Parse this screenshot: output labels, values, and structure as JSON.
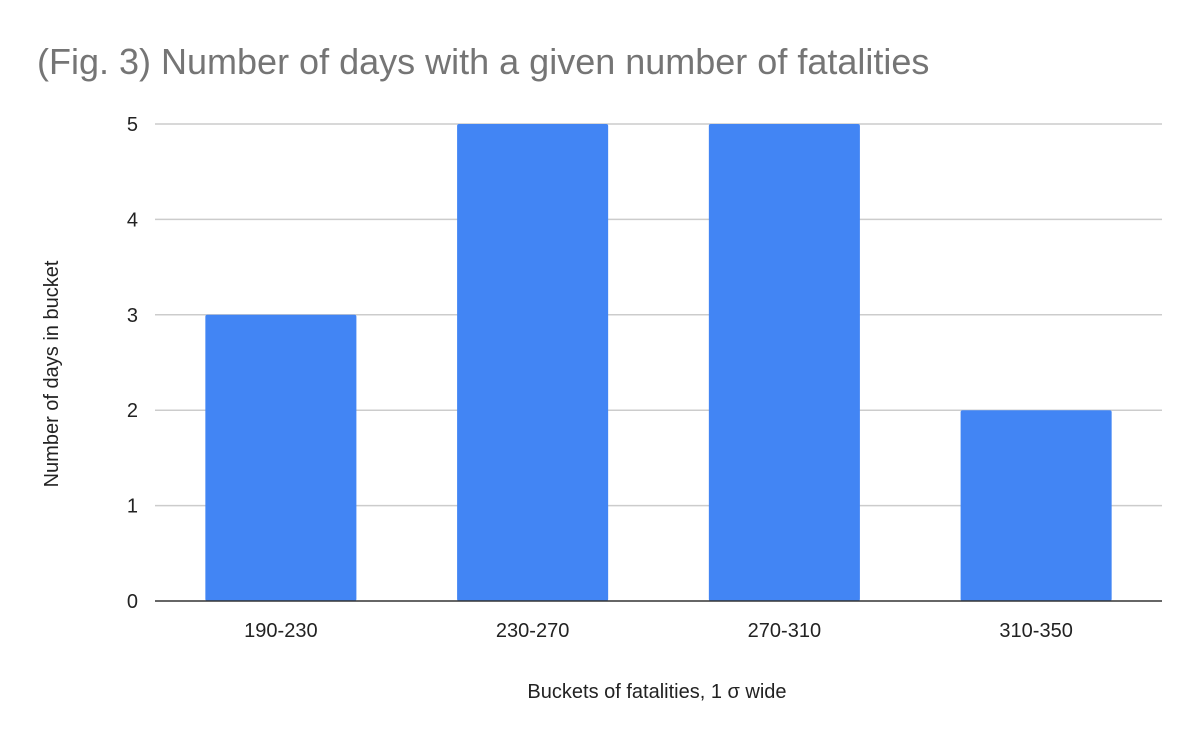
{
  "chart_data": {
    "type": "bar",
    "title": "(Fig. 3) Number of days with a given number of fatalities",
    "xlabel": "Buckets of fatalities, 1 σ wide",
    "ylabel": "Number of days in bucket",
    "categories": [
      "190-230",
      "230-270",
      "270-310",
      "310-350"
    ],
    "values": [
      3,
      5,
      5,
      2
    ],
    "ylim": [
      0,
      5
    ],
    "yticks": [
      "0",
      "1",
      "2",
      "3",
      "4",
      "5"
    ],
    "grid": true,
    "legend": "none",
    "bar_color": "#4285f4"
  }
}
